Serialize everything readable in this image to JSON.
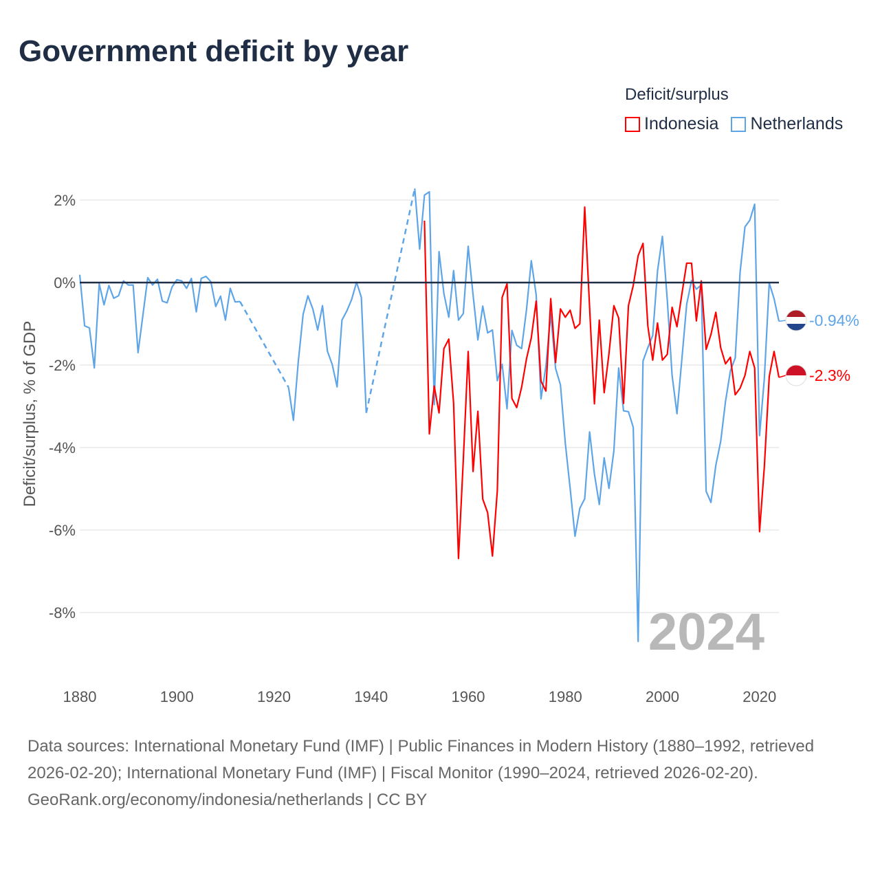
{
  "title": "Government deficit by year",
  "legend": {
    "title": "Deficit/surplus",
    "items": [
      {
        "name": "Indonesia",
        "color": "#ff0000"
      },
      {
        "name": "Netherlands",
        "color": "#5ea5e8"
      }
    ]
  },
  "footer": {
    "sources": "Data sources: International Monetary Fund (IMF) | Public Finances in Modern History (1880–1992, retrieved 2026-02-20); International Monetary Fund (IMF) | Fiscal Monitor (1990–2024, retrieved 2026-02-20).",
    "link": "GeoRank.org/economy/indonesia/netherlands",
    "license": " | CC BY"
  },
  "chart_data": {
    "type": "line",
    "title": "Government deficit by year",
    "xlabel": "",
    "ylabel": "Deficit/surplus, % of GDP",
    "xlim": [
      1880,
      2024
    ],
    "ylim": [
      -9,
      2.4
    ],
    "xticks": [
      1880,
      1900,
      1920,
      1940,
      1960,
      1980,
      2000,
      2020
    ],
    "xtick_labels": [
      "1880",
      "1900",
      "1920",
      "1940",
      "1960",
      "1980",
      "2000",
      "2020"
    ],
    "yticks": [
      2,
      0,
      -2,
      -4,
      -6,
      -8
    ],
    "ytick_labels": [
      "2%",
      "0%",
      "-2%",
      "-4%",
      "-6%",
      "-8%"
    ],
    "grid": true,
    "legend_position": "top-right",
    "year_watermark": "2024",
    "series": [
      {
        "name": "Netherlands",
        "color": "#5ea5e8",
        "end_label": "-0.94%",
        "flag": [
          "#ae1c28",
          "#ffffff",
          "#21468b"
        ],
        "x": [
          1880,
          1881,
          1882,
          1883,
          1884,
          1885,
          1886,
          1887,
          1888,
          1889,
          1890,
          1891,
          1892,
          1893,
          1894,
          1895,
          1896,
          1897,
          1898,
          1899,
          1900,
          1901,
          1902,
          1903,
          1904,
          1905,
          1906,
          1907,
          1908,
          1909,
          1910,
          1911,
          1912,
          1913,
          1923,
          1924,
          1925,
          1926,
          1927,
          1928,
          1929,
          1930,
          1931,
          1932,
          1933,
          1934,
          1935,
          1936,
          1937,
          1938,
          1939,
          1949,
          1950,
          1951,
          1952,
          1953,
          1954,
          1955,
          1956,
          1957,
          1958,
          1959,
          1960,
          1961,
          1962,
          1963,
          1964,
          1965,
          1966,
          1967,
          1968,
          1969,
          1970,
          1971,
          1972,
          1973,
          1974,
          1975,
          1976,
          1977,
          1978,
          1979,
          1980,
          1981,
          1982,
          1983,
          1984,
          1985,
          1986,
          1987,
          1988,
          1989,
          1990,
          1991,
          1992,
          1993,
          1994,
          1995,
          1996,
          1997,
          1998,
          1999,
          2000,
          2001,
          2002,
          2003,
          2004,
          2005,
          2006,
          2007,
          2008,
          2009,
          2010,
          2011,
          2012,
          2013,
          2014,
          2015,
          2016,
          2017,
          2018,
          2019,
          2020,
          2021,
          2022,
          2023,
          2024
        ],
        "y": [
          0.19,
          -1.05,
          -1.1,
          -2.07,
          -0.03,
          -0.54,
          -0.07,
          -0.38,
          -0.32,
          0.04,
          -0.06,
          -0.06,
          -1.7,
          -0.8,
          0.12,
          -0.06,
          0.08,
          -0.45,
          -0.49,
          -0.11,
          0.07,
          0.04,
          -0.14,
          0.1,
          -0.71,
          0.1,
          0.15,
          0.02,
          -0.58,
          -0.33,
          -0.91,
          -0.14,
          -0.47,
          -0.46,
          -2.54,
          -3.34,
          -1.93,
          -0.77,
          -0.32,
          -0.64,
          -1.15,
          -0.56,
          -1.66,
          -1.99,
          -2.53,
          -0.91,
          -0.69,
          -0.41,
          0.01,
          -0.36,
          -3.16,
          2.28,
          0.81,
          2.12,
          2.2,
          -2.96,
          0.75,
          -0.27,
          -0.84,
          0.29,
          -0.91,
          -0.75,
          0.88,
          -0.3,
          -1.39,
          -0.57,
          -1.22,
          -1.15,
          -2.38,
          -1.98,
          -3.06,
          -1.16,
          -1.52,
          -1.6,
          -0.66,
          0.53,
          -0.3,
          -2.82,
          -2.03,
          -0.76,
          -2.08,
          -2.48,
          -3.9,
          -4.99,
          -6.15,
          -5.47,
          -5.24,
          -3.62,
          -4.64,
          -5.38,
          -4.25,
          -4.99,
          -4.08,
          -2.07,
          -3.11,
          -3.13,
          -3.51,
          -8.7,
          -1.9,
          -1.58,
          -1.28,
          0.28,
          1.12,
          -0.42,
          -2.25,
          -3.18,
          -1.86,
          -0.53,
          0.05,
          -0.16,
          -0.06,
          -5.06,
          -5.33,
          -4.43,
          -3.85,
          -2.88,
          -2.14,
          -1.83,
          0.25,
          1.35,
          1.51,
          1.9,
          -3.71,
          -2.32,
          -0.01,
          -0.39,
          -0.94
        ]
      },
      {
        "name": "Indonesia",
        "color": "#ff0000",
        "end_label": "-2.3%",
        "flag": [
          "#ce1126",
          "#ffffff"
        ],
        "x": [
          1951,
          1952,
          1953,
          1954,
          1955,
          1956,
          1957,
          1958,
          1959,
          1960,
          1961,
          1962,
          1963,
          1964,
          1965,
          1966,
          1967,
          1968,
          1969,
          1970,
          1971,
          1972,
          1973,
          1974,
          1975,
          1976,
          1977,
          1978,
          1979,
          1980,
          1981,
          1982,
          1983,
          1984,
          1985,
          1986,
          1987,
          1988,
          1989,
          1990,
          1991,
          1992,
          1993,
          1994,
          1995,
          1996,
          1997,
          1998,
          1999,
          2000,
          2001,
          2002,
          2003,
          2004,
          2005,
          2006,
          2007,
          2008,
          2009,
          2010,
          2011,
          2012,
          2013,
          2014,
          2015,
          2016,
          2017,
          2018,
          2019,
          2020,
          2021,
          2022,
          2023,
          2024
        ],
        "y": [
          1.5,
          -3.67,
          -2.51,
          -3.16,
          -1.6,
          -1.37,
          -2.93,
          -6.69,
          -4.3,
          -1.67,
          -4.58,
          -3.12,
          -5.25,
          -5.58,
          -6.63,
          -5.04,
          -0.36,
          -0.03,
          -2.81,
          -3.03,
          -2.54,
          -1.85,
          -1.34,
          -0.45,
          -2.39,
          -2.63,
          -0.39,
          -1.94,
          -0.64,
          -0.84,
          -0.67,
          -1.11,
          -1.0,
          1.83,
          -0.6,
          -2.94,
          -0.91,
          -2.67,
          -1.72,
          -0.56,
          -0.86,
          -2.93,
          -0.56,
          -0.07,
          0.65,
          0.95,
          -1.05,
          -1.88,
          -0.98,
          -1.88,
          -1.74,
          -0.6,
          -1.07,
          -0.28,
          0.47,
          0.47,
          -0.93,
          0.04,
          -1.62,
          -1.26,
          -0.72,
          -1.58,
          -1.97,
          -1.81,
          -2.72,
          -2.56,
          -2.25,
          -1.67,
          -2.07,
          -6.04,
          -4.46,
          -2.28,
          -1.67,
          -2.3
        ]
      }
    ]
  }
}
